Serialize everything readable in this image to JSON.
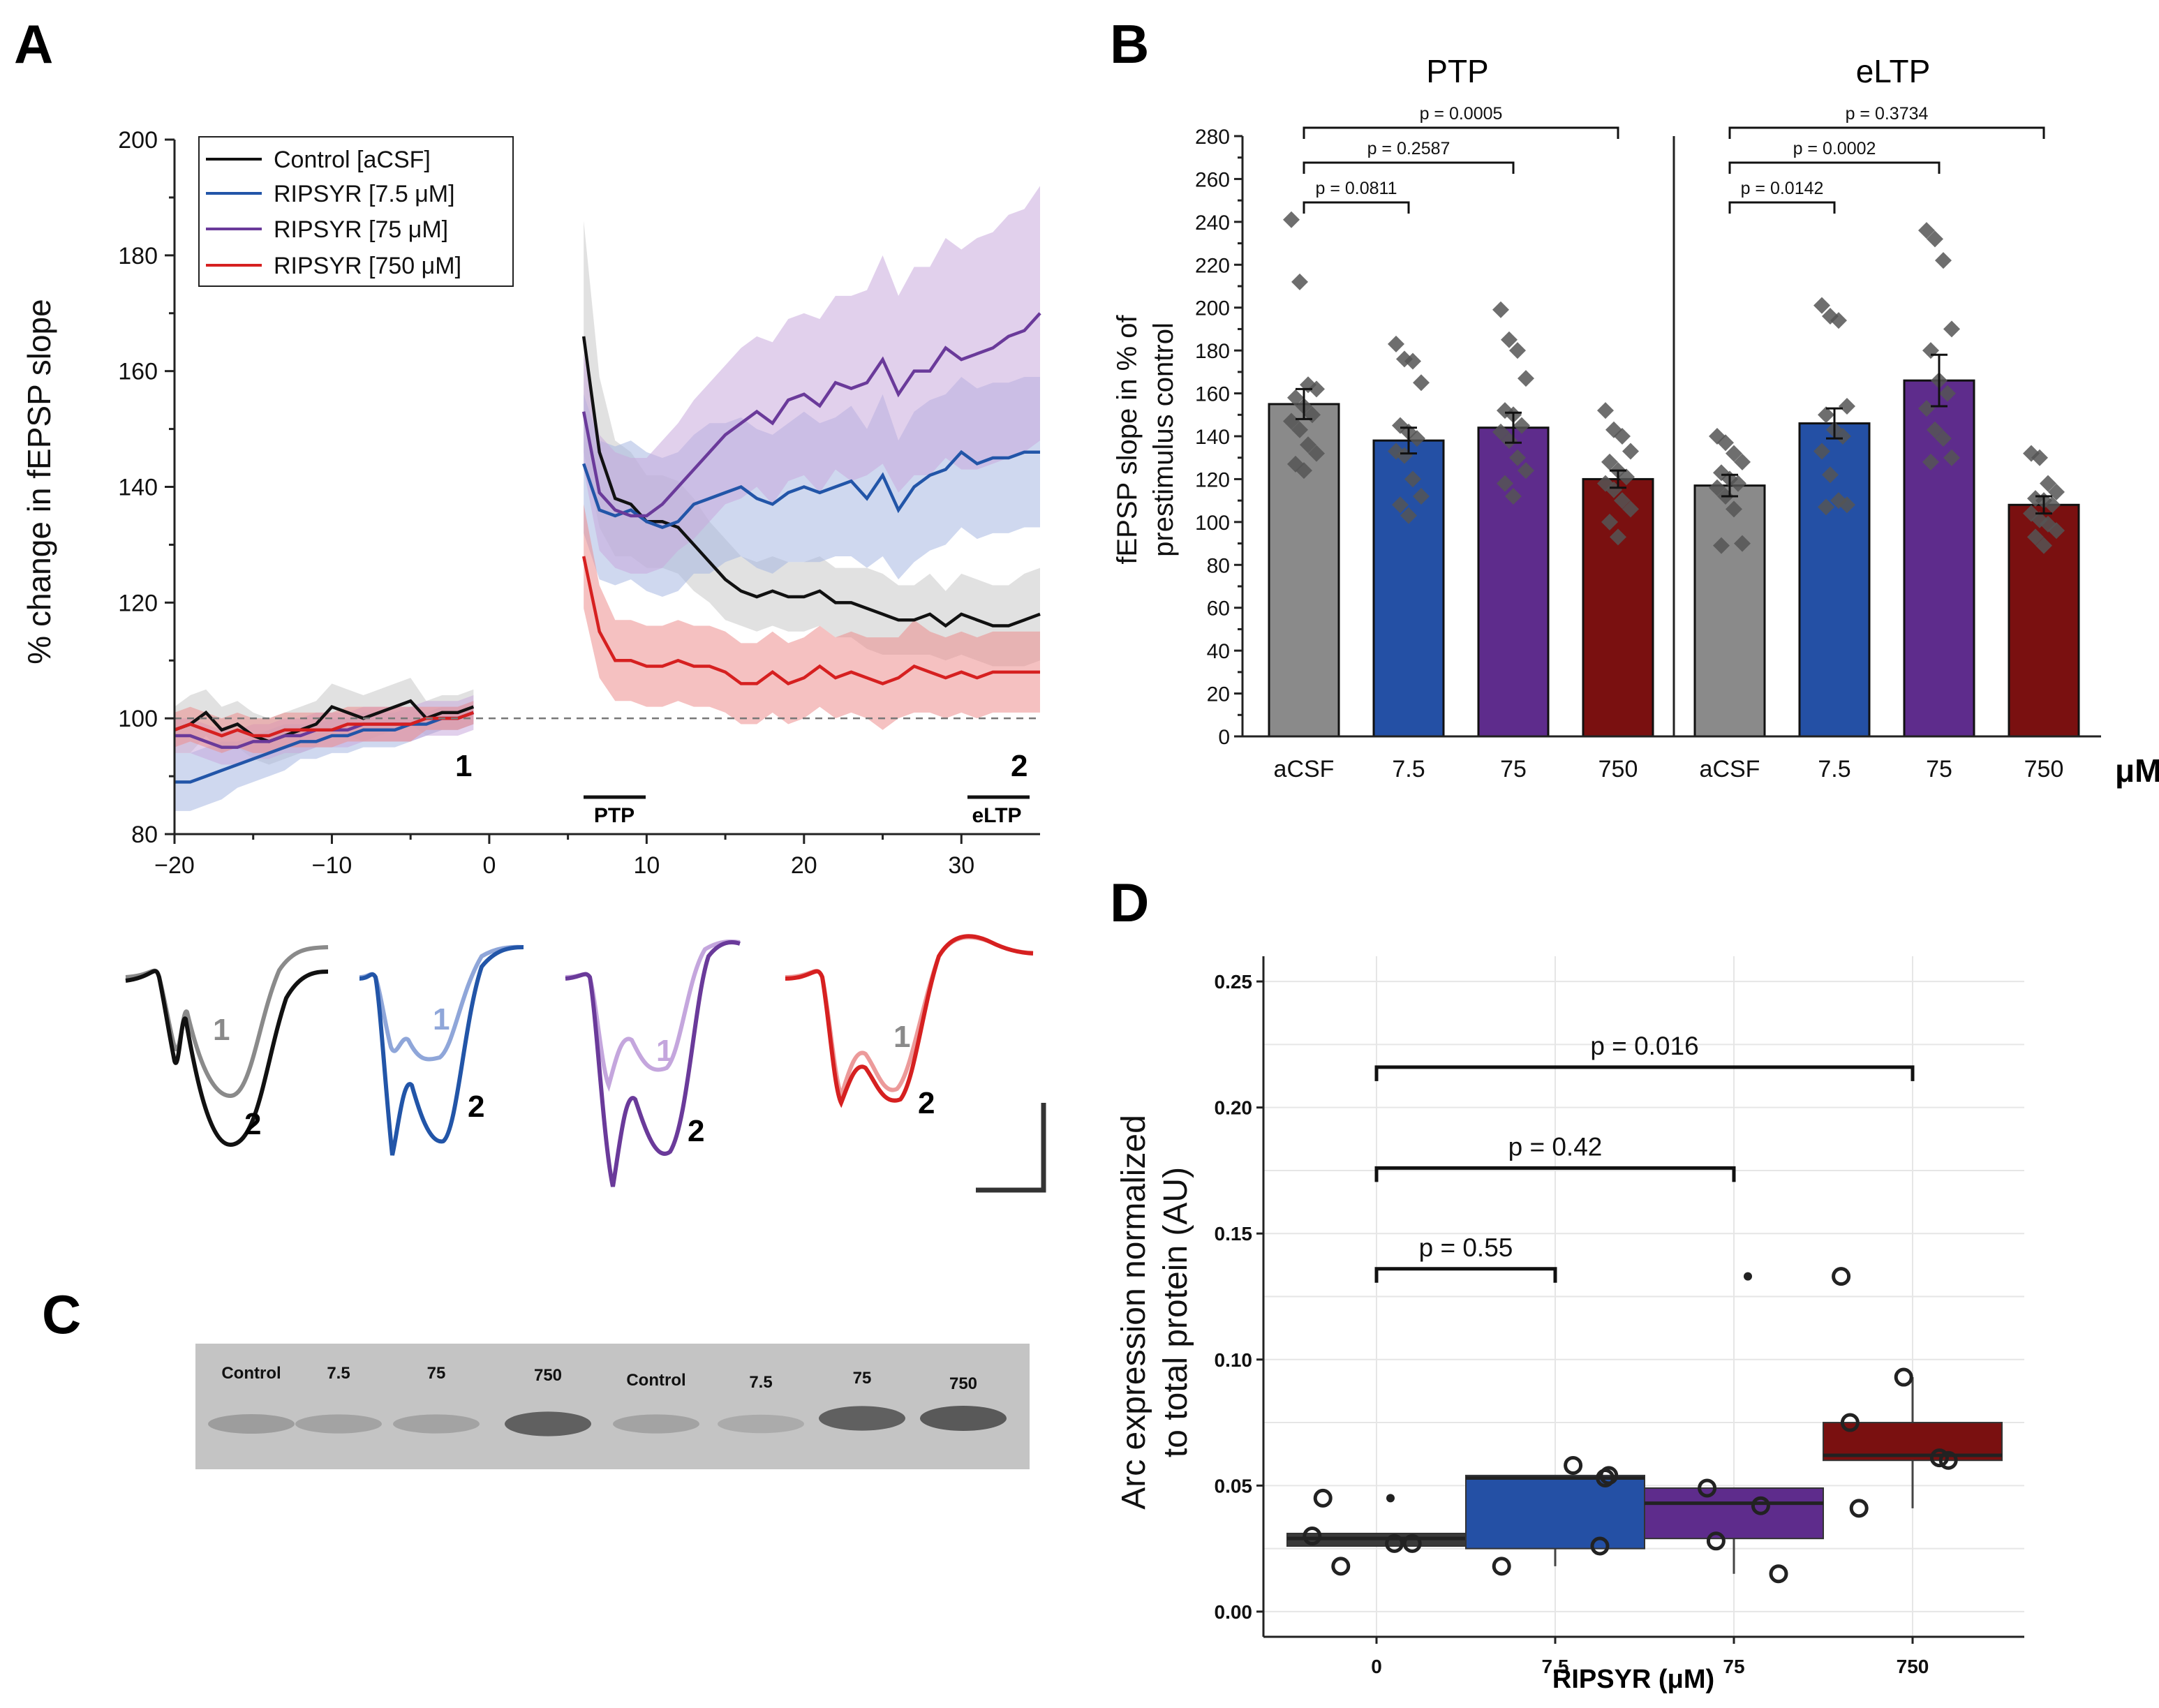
{
  "figure": {
    "panel_labels": {
      "a": "A",
      "b": "B",
      "c": "C",
      "d": "D"
    },
    "colors": {
      "control": "#111111",
      "low": "#2255a8",
      "mid": "#6a3a9a",
      "high": "#d62020",
      "bar_acsf": "#8a8a8a",
      "bar_low": "#2450a5",
      "bar_mid": "#5e2c8c",
      "bar_high": "#7a1010"
    }
  },
  "chart_data": [
    {
      "id": "A",
      "type": "line",
      "ylabel": "% change in fEPSP slope",
      "xlabel": "",
      "xlim": [
        -20,
        35
      ],
      "ylim": [
        80,
        200
      ],
      "xticks": [
        -20,
        -10,
        0,
        10,
        20,
        30
      ],
      "xtick_labels": [
        "−20",
        "−10",
        "0",
        "10",
        "20",
        "30"
      ],
      "yticks": [
        80,
        100,
        120,
        140,
        160,
        180,
        200
      ],
      "baseline": 100,
      "annotations": {
        "point1": "1",
        "point2": "2",
        "ptp": "PTP",
        "eltp": "eLTP",
        "ptp_range": [
          6,
          10
        ],
        "eltp_range": [
          31,
          35
        ]
      },
      "legend": [
        "Control [aCSF]",
        "RIPSYR [7.5 μM]",
        "RIPSYR [75 μM]",
        "RIPSYR [750 μM]"
      ],
      "series": [
        {
          "name": "Control [aCSF]",
          "color": "#111111",
          "band": "#c8c8c8",
          "x": [
            -20,
            -19,
            -18,
            -17,
            -16,
            -15,
            -14,
            -13,
            -12,
            -11,
            -10,
            -9,
            -8,
            -7,
            -6,
            -5,
            -4,
            -3,
            -2,
            -1
          ],
          "y": [
            98,
            99,
            101,
            98,
            99,
            97,
            96,
            97,
            98,
            99,
            102,
            101,
            100,
            101,
            102,
            103,
            100,
            101,
            101,
            102
          ],
          "err": [
            4,
            5,
            4,
            4,
            4,
            4,
            4,
            4,
            4,
            4,
            4,
            4,
            4,
            4,
            4,
            4,
            3,
            3,
            3,
            3
          ],
          "x2": [
            6,
            7,
            8,
            9,
            10,
            11,
            12,
            13,
            14,
            15,
            16,
            17,
            18,
            19,
            20,
            21,
            22,
            23,
            24,
            25,
            26,
            27,
            28,
            29,
            30,
            31,
            32,
            33,
            34,
            35
          ],
          "y2": [
            166,
            146,
            138,
            137,
            134,
            134,
            133,
            130,
            127,
            124,
            122,
            121,
            122,
            121,
            121,
            122,
            120,
            120,
            119,
            118,
            117,
            117,
            118,
            116,
            118,
            117,
            116,
            116,
            117,
            118
          ],
          "err2": [
            20,
            13,
            10,
            9,
            8,
            8,
            8,
            8,
            7,
            7,
            6,
            6,
            6,
            6,
            6,
            6,
            6,
            6,
            7,
            7,
            6,
            6,
            7,
            6,
            7,
            7,
            7,
            7,
            8,
            8
          ]
        },
        {
          "name": "RIPSYR [7.5 μM]",
          "color": "#2255a8",
          "band": "#a7b8e2",
          "x": [
            -20,
            -19,
            -18,
            -17,
            -16,
            -15,
            -14,
            -13,
            -12,
            -11,
            -10,
            -9,
            -8,
            -7,
            -6,
            -5,
            -4,
            -3,
            -2,
            -1
          ],
          "y": [
            89,
            89,
            90,
            91,
            92,
            93,
            94,
            95,
            96,
            96,
            97,
            97,
            98,
            98,
            98,
            99,
            99,
            100,
            100,
            101
          ],
          "err": [
            5,
            5,
            5,
            5,
            4,
            4,
            4,
            4,
            3,
            3,
            3,
            3,
            3,
            3,
            3,
            3,
            2,
            2,
            2,
            2
          ],
          "x2": [
            6,
            7,
            8,
            9,
            10,
            11,
            12,
            13,
            14,
            15,
            16,
            17,
            18,
            19,
            20,
            21,
            22,
            23,
            24,
            25,
            26,
            27,
            28,
            29,
            30,
            31,
            32,
            33,
            34,
            35
          ],
          "y2": [
            144,
            136,
            135,
            136,
            134,
            133,
            134,
            137,
            138,
            139,
            140,
            138,
            137,
            139,
            140,
            139,
            140,
            141,
            138,
            142,
            136,
            140,
            142,
            143,
            146,
            144,
            145,
            145,
            146,
            146
          ],
          "err2": [
            12,
            12,
            12,
            12,
            12,
            12,
            12,
            12,
            13,
            12,
            12,
            12,
            12,
            12,
            13,
            12,
            12,
            13,
            12,
            14,
            12,
            13,
            13,
            13,
            13,
            13,
            13,
            13,
            13,
            13
          ]
        },
        {
          "name": "RIPSYR [75 μM]",
          "color": "#6a3a9a",
          "band": "#c9a9dd",
          "x": [
            -20,
            -19,
            -18,
            -17,
            -16,
            -15,
            -14,
            -13,
            -12,
            -11,
            -10,
            -9,
            -8,
            -7,
            -6,
            -5,
            -4,
            -3,
            -2,
            -1
          ],
          "y": [
            97,
            97,
            96,
            95,
            95,
            96,
            96,
            97,
            97,
            98,
            98,
            98,
            99,
            99,
            99,
            99,
            100,
            100,
            100,
            101
          ],
          "err": [
            3,
            3,
            3,
            3,
            3,
            3,
            3,
            3,
            3,
            3,
            3,
            3,
            3,
            3,
            3,
            3,
            3,
            3,
            3,
            3
          ],
          "x2": [
            6,
            7,
            8,
            9,
            10,
            11,
            12,
            13,
            14,
            15,
            16,
            17,
            18,
            19,
            20,
            21,
            22,
            23,
            24,
            25,
            26,
            27,
            28,
            29,
            30,
            31,
            32,
            33,
            34,
            35
          ],
          "y2": [
            153,
            139,
            136,
            135,
            135,
            137,
            140,
            143,
            146,
            149,
            151,
            153,
            151,
            155,
            156,
            154,
            158,
            157,
            158,
            162,
            156,
            160,
            160,
            164,
            162,
            163,
            164,
            166,
            167,
            170
          ],
          "err2": [
            10,
            10,
            10,
            10,
            10,
            11,
            11,
            12,
            12,
            12,
            13,
            13,
            14,
            14,
            14,
            15,
            15,
            16,
            16,
            18,
            17,
            18,
            18,
            19,
            19,
            20,
            20,
            21,
            21,
            22
          ]
        },
        {
          "name": "RIPSYR [750 μM]",
          "color": "#d62020",
          "band": "#ec8e8e",
          "x": [
            -20,
            -19,
            -18,
            -17,
            -16,
            -15,
            -14,
            -13,
            -12,
            -11,
            -10,
            -9,
            -8,
            -7,
            -6,
            -5,
            -4,
            -3,
            -2,
            -1
          ],
          "y": [
            98,
            99,
            98,
            97,
            98,
            97,
            97,
            98,
            98,
            98,
            98,
            99,
            99,
            99,
            99,
            99,
            100,
            100,
            100,
            101
          ],
          "err": [
            3,
            3,
            3,
            3,
            3,
            3,
            3,
            3,
            3,
            3,
            3,
            3,
            3,
            3,
            3,
            3,
            2,
            2,
            2,
            2
          ],
          "x2": [
            6,
            7,
            8,
            9,
            10,
            11,
            12,
            13,
            14,
            15,
            16,
            17,
            18,
            19,
            20,
            21,
            22,
            23,
            24,
            25,
            26,
            27,
            28,
            29,
            30,
            31,
            32,
            33,
            34,
            35
          ],
          "y2": [
            128,
            115,
            110,
            110,
            109,
            109,
            110,
            109,
            109,
            108,
            106,
            106,
            108,
            106,
            107,
            109,
            107,
            108,
            107,
            106,
            107,
            109,
            108,
            107,
            108,
            107,
            108,
            108,
            108,
            108
          ],
          "err2": [
            9,
            8,
            7,
            7,
            7,
            7,
            7,
            7,
            7,
            7,
            7,
            7,
            7,
            7,
            7,
            7,
            7,
            7,
            7,
            8,
            7,
            8,
            7,
            7,
            7,
            7,
            7,
            7,
            7,
            7
          ]
        }
      ],
      "traces": {
        "label1": "1",
        "label2": "2"
      }
    },
    {
      "id": "B",
      "type": "bar",
      "ylabel": "fEPSP slope in % of prestimulus control",
      "ylabel_lines": [
        "fEPSP slope in % of",
        "prestimulus control"
      ],
      "ylim": [
        0,
        280
      ],
      "yticks": [
        0,
        20,
        40,
        60,
        80,
        100,
        120,
        140,
        160,
        180,
        200,
        220,
        240,
        260,
        280
      ],
      "groups": [
        "PTP",
        "eLTP"
      ],
      "categories": [
        "aCSF",
        "7.5",
        "75",
        "750",
        "aCSF",
        "7.5",
        "75",
        "750"
      ],
      "unit": "μM",
      "values": [
        155,
        138,
        144,
        120,
        117,
        146,
        166,
        108
      ],
      "sem": [
        7,
        6,
        7,
        4,
        5,
        7,
        12,
        4
      ],
      "points": [
        [
          241,
          212,
          164,
          162,
          158,
          154,
          150,
          147,
          143,
          136,
          132,
          127,
          124
        ],
        [
          183,
          176,
          175,
          165,
          145,
          142,
          139,
          133,
          131,
          120,
          112,
          108,
          103
        ],
        [
          199,
          185,
          180,
          167,
          152,
          150,
          145,
          142,
          138,
          130,
          124,
          118,
          112
        ],
        [
          152,
          143,
          140,
          133,
          128,
          124,
          121,
          118,
          115,
          110,
          106,
          100,
          93
        ],
        [
          140,
          137,
          132,
          128,
          123,
          120,
          118,
          116,
          112,
          106,
          90,
          89
        ],
        [
          201,
          196,
          194,
          154,
          150,
          143,
          140,
          133,
          122,
          110,
          108,
          107
        ],
        [
          236,
          232,
          222,
          190,
          180,
          166,
          160,
          153,
          143,
          139,
          130,
          128
        ],
        [
          132,
          130,
          118,
          114,
          111,
          110,
          108,
          104,
          101,
          99,
          96,
          93,
          89
        ]
      ],
      "comparisons": [
        {
          "from": 0,
          "to": 1,
          "label": "p = 0.0811"
        },
        {
          "from": 0,
          "to": 2,
          "label": "p = 0.2587"
        },
        {
          "from": 0,
          "to": 3,
          "label": "p = 0.0005"
        },
        {
          "from": 4,
          "to": 5,
          "label": "p = 0.0142"
        },
        {
          "from": 4,
          "to": 6,
          "label": "p = 0.0002"
        },
        {
          "from": 4,
          "to": 7,
          "label": "p = 0.3734"
        }
      ]
    },
    {
      "id": "C",
      "type": "table",
      "blot_labels": [
        "Control",
        "7.5",
        "75",
        "750",
        "Control",
        "7.5",
        "75",
        "750"
      ],
      "band_intensity": [
        0.25,
        0.2,
        0.2,
        0.7,
        0.2,
        0.15,
        0.7,
        0.75
      ]
    },
    {
      "id": "D",
      "type": "box",
      "ylabel": "Arc expression normalized to total protein (AU)",
      "ylabel_lines": [
        "Arc expression normalized",
        "to total protein (AU)"
      ],
      "xlabel": "RIPSYR (μM)",
      "categories": [
        "0",
        "7.5",
        "75",
        "750"
      ],
      "ylim": [
        -0.01,
        0.26
      ],
      "yticks": [
        0.0,
        0.05,
        0.1,
        0.15,
        0.2,
        0.25
      ],
      "ytick_labels": [
        "0.00",
        "0.05",
        "0.10",
        "0.15",
        "0.20",
        "0.25"
      ],
      "boxes": [
        {
          "q1": 0.026,
          "median": 0.029,
          "q3": 0.031,
          "whisker_low": 0.026,
          "whisker_high": 0.031,
          "color": "#3a3a3a"
        },
        {
          "q1": 0.025,
          "median": 0.053,
          "q3": 0.054,
          "whisker_low": 0.018,
          "whisker_high": 0.054,
          "color": "#2450a5"
        },
        {
          "q1": 0.029,
          "median": 0.043,
          "q3": 0.049,
          "whisker_low": 0.015,
          "whisker_high": 0.049,
          "color": "#5e2c8c"
        },
        {
          "q1": 0.06,
          "median": 0.062,
          "q3": 0.075,
          "whisker_low": 0.041,
          "whisker_high": 0.093,
          "color": "#7a1010"
        }
      ],
      "outliers": [
        [
          0.045
        ],
        [],
        [
          0.133
        ],
        []
      ],
      "points": [
        [
          {
            "x": -0.36,
            "y": 0.03
          },
          {
            "x": -0.3,
            "y": 0.045
          },
          {
            "x": -0.2,
            "y": 0.018
          },
          {
            "x": 0.1,
            "y": 0.027
          },
          {
            "x": 0.2,
            "y": 0.027
          }
        ],
        [
          {
            "x": -0.3,
            "y": 0.018
          },
          {
            "x": 0.1,
            "y": 0.058
          },
          {
            "x": 0.25,
            "y": 0.026
          },
          {
            "x": 0.28,
            "y": 0.053
          },
          {
            "x": 0.3,
            "y": 0.054
          }
        ],
        [
          {
            "x": -0.15,
            "y": 0.049
          },
          {
            "x": -0.1,
            "y": 0.028
          },
          {
            "x": 0.15,
            "y": 0.042
          },
          {
            "x": 0.25,
            "y": 0.015
          },
          {
            "x": 0.6,
            "y": 0.133
          }
        ],
        [
          {
            "x": -0.35,
            "y": 0.075
          },
          {
            "x": -0.3,
            "y": 0.041
          },
          {
            "x": -0.05,
            "y": 0.093
          },
          {
            "x": 0.15,
            "y": 0.061
          },
          {
            "x": 0.2,
            "y": 0.06
          }
        ]
      ],
      "comparisons": [
        {
          "from": 0,
          "to": 1,
          "label": "p = 0.55",
          "y": 0.136
        },
        {
          "from": 0,
          "to": 2,
          "label": "p = 0.42",
          "y": 0.176
        },
        {
          "from": 0,
          "to": 3,
          "label": "p = 0.016",
          "y": 0.216
        }
      ]
    }
  ]
}
